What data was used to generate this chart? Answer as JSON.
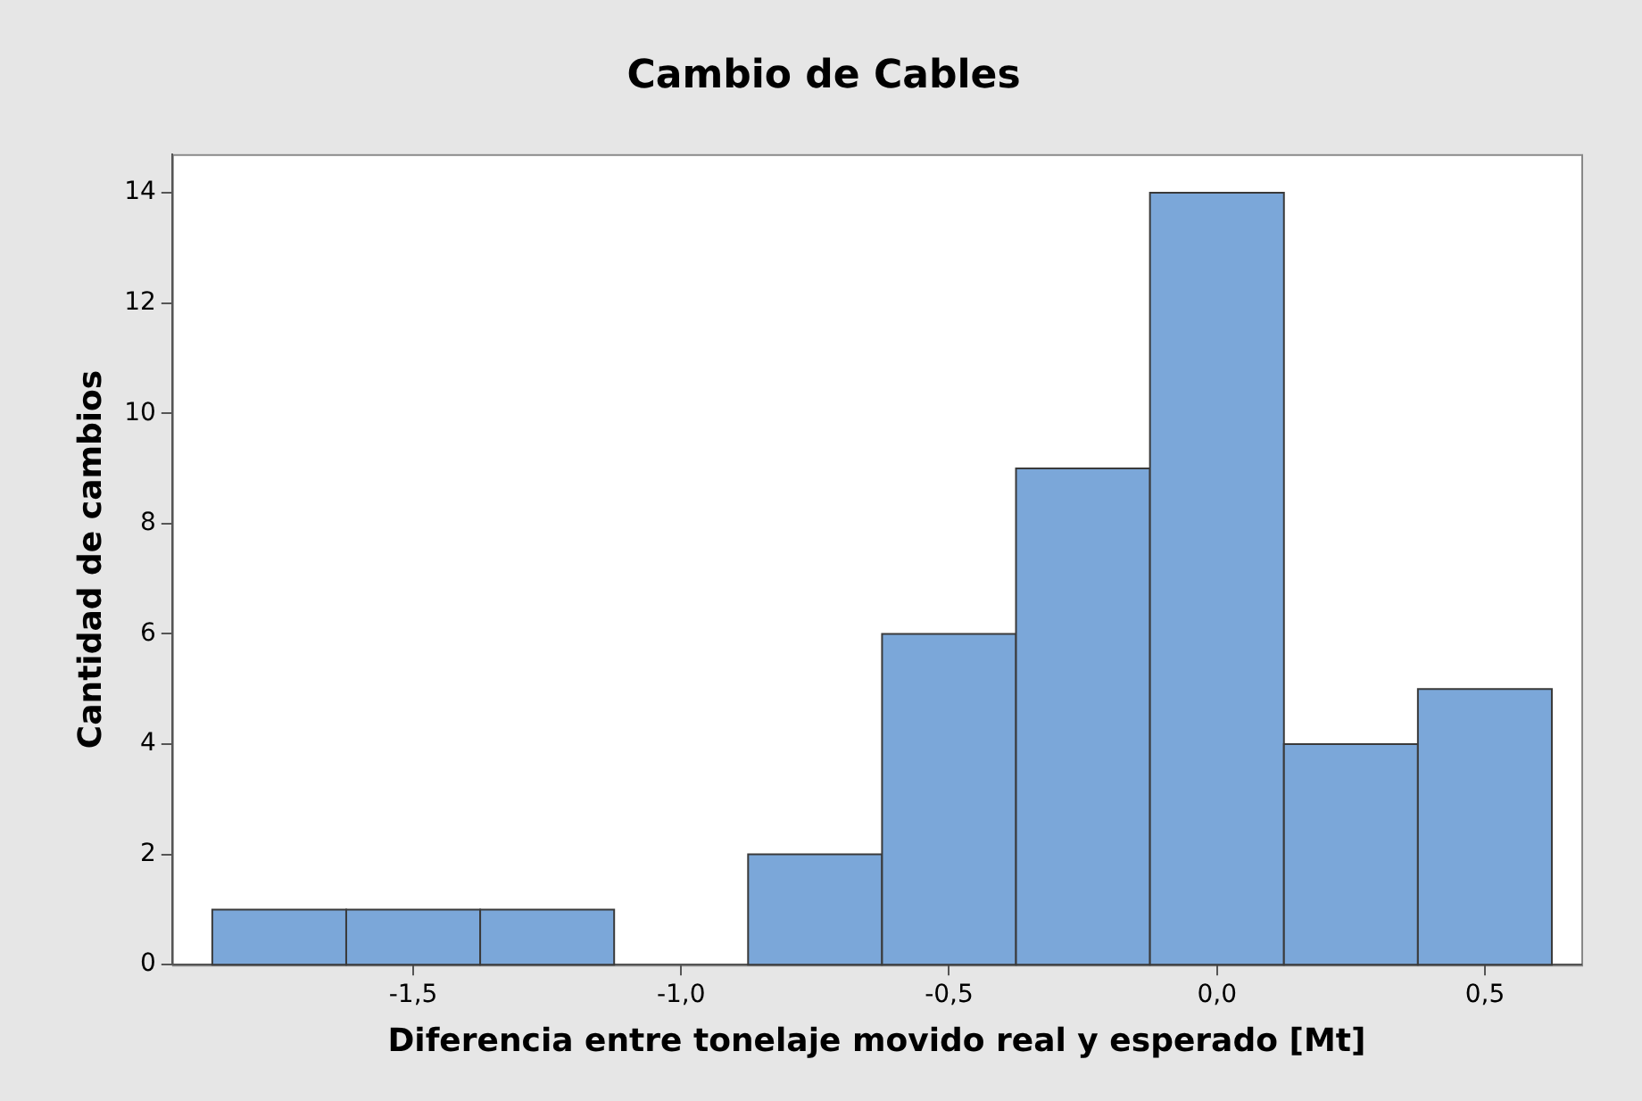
{
  "chart_data": {
    "type": "histogram",
    "title": "Cambio de Cables",
    "xlabel": "Diferencia entre tonelaje movido real y esperado [Mt]",
    "ylabel": "Cantidad de cambios",
    "bins": [
      -1.875,
      -1.625,
      -1.375,
      -1.125,
      -0.875,
      -0.625,
      -0.375,
      -0.125,
      0.125,
      0.375,
      0.625
    ],
    "values": [
      1,
      1,
      1,
      0,
      2,
      6,
      9,
      14,
      4,
      5
    ],
    "color": "#7ba7d9",
    "xlim": [
      -1.95,
      0.68
    ],
    "xticks": [
      {
        "value": -1.5,
        "label": "-1,5"
      },
      {
        "value": -1.0,
        "label": "-1,0"
      },
      {
        "value": -0.5,
        "label": "-0,5"
      },
      {
        "value": 0.0,
        "label": "0,0"
      },
      {
        "value": 0.5,
        "label": "0,5"
      }
    ],
    "ylim": [
      0,
      14.7
    ],
    "yticks": [
      0,
      2,
      4,
      6,
      8,
      10,
      12,
      14
    ]
  }
}
